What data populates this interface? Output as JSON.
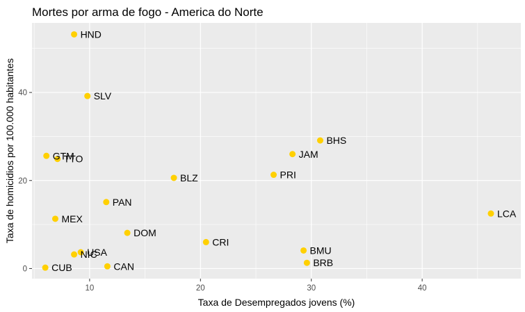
{
  "chart_data": {
    "type": "scatter",
    "title": "Mortes por arma de fogo - America do Norte",
    "xlabel": "Taxa de Desempregados jovens (%)",
    "ylabel": "Taxa de homicidios por 100.000 habitantes",
    "xlim": [
      4.8,
      48.9
    ],
    "ylim": [
      -2.3,
      55.8
    ],
    "x_ticks": [
      10,
      20,
      30,
      40
    ],
    "y_ticks": [
      0,
      20,
      40
    ],
    "grid": true,
    "panel_background": "#ebebeb",
    "grid_color": "#ffffff",
    "point_color": "#ffd000",
    "points": [
      {
        "label": "HND",
        "x": 8.6,
        "y": 53.2
      },
      {
        "label": "SLV",
        "x": 9.8,
        "y": 39.2
      },
      {
        "label": "BHS",
        "x": 30.8,
        "y": 29.1
      },
      {
        "label": "JAM",
        "x": 28.3,
        "y": 26.0
      },
      {
        "label": "GTM",
        "x": 6.1,
        "y": 25.6
      },
      {
        "label": "TTO",
        "x": 7.1,
        "y": 24.9
      },
      {
        "label": "PRI",
        "x": 26.6,
        "y": 21.3
      },
      {
        "label": "BLZ",
        "x": 17.6,
        "y": 20.6
      },
      {
        "label": "PAN",
        "x": 11.5,
        "y": 15.1
      },
      {
        "label": "LCA",
        "x": 46.2,
        "y": 12.5
      },
      {
        "label": "MEX",
        "x": 6.9,
        "y": 11.3
      },
      {
        "label": "DOM",
        "x": 13.4,
        "y": 8.1
      },
      {
        "label": "CRI",
        "x": 20.5,
        "y": 6.0
      },
      {
        "label": "USA",
        "x": 9.2,
        "y": 3.7
      },
      {
        "label": "NIC",
        "x": 8.6,
        "y": 3.2
      },
      {
        "label": "BMU",
        "x": 29.3,
        "y": 4.1
      },
      {
        "label": "BRB",
        "x": 29.6,
        "y": 1.3
      },
      {
        "label": "CAN",
        "x": 11.6,
        "y": 0.5
      },
      {
        "label": "CUB",
        "x": 6.0,
        "y": 0.2
      }
    ]
  }
}
